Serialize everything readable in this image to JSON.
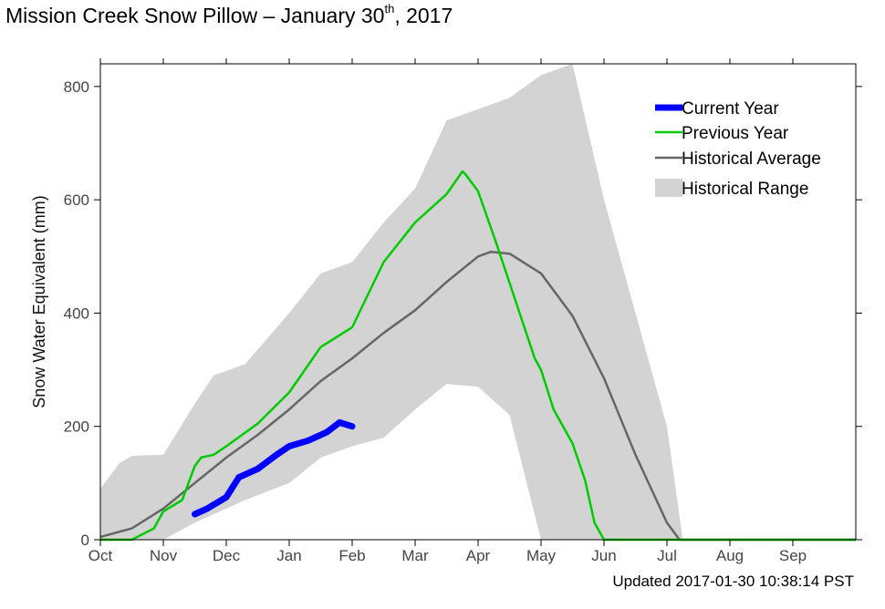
{
  "title": {
    "prefix": "Mission Creek Snow Pillow – January 30",
    "sup": "th",
    "suffix": ", 2017"
  },
  "updated": "Updated 2017-01-30 10:38:14 PST",
  "chart_data": {
    "type": "line",
    "title": "Mission Creek Snow Pillow – January 30th, 2017",
    "xlabel": "",
    "ylabel": "Snow Water Equivalent (mm)",
    "xlim": [
      "Oct",
      "Oct"
    ],
    "x_tick_labels": [
      "Oct",
      "Nov",
      "Dec",
      "Jan",
      "Feb",
      "Mar",
      "Apr",
      "May",
      "Jun",
      "Jul",
      "Aug",
      "Sep"
    ],
    "ylim": [
      0,
      840
    ],
    "y_ticks": [
      0,
      200,
      400,
      600,
      800
    ],
    "grid": false,
    "legend_position": "top-right",
    "colors": {
      "current_year": "#0000ff",
      "previous_year": "#00cc00",
      "historical_average": "#666666",
      "historical_range": "#d3d3d3"
    },
    "series": [
      {
        "name": "Historical Range",
        "kind": "band",
        "points": [
          {
            "x": 0.0,
            "lo": 0,
            "hi": 90
          },
          {
            "x": 0.3,
            "lo": 0,
            "hi": 135
          },
          {
            "x": 0.5,
            "lo": 0,
            "hi": 148
          },
          {
            "x": 1.0,
            "lo": 0,
            "hi": 150
          },
          {
            "x": 1.5,
            "lo": 30,
            "hi": 240
          },
          {
            "x": 1.8,
            "lo": 45,
            "hi": 290
          },
          {
            "x": 2.3,
            "lo": 70,
            "hi": 310
          },
          {
            "x": 3.0,
            "lo": 100,
            "hi": 400
          },
          {
            "x": 3.5,
            "lo": 145,
            "hi": 470
          },
          {
            "x": 4.0,
            "lo": 165,
            "hi": 490
          },
          {
            "x": 4.5,
            "lo": 180,
            "hi": 560
          },
          {
            "x": 5.0,
            "lo": 230,
            "hi": 620
          },
          {
            "x": 5.5,
            "lo": 275,
            "hi": 740
          },
          {
            "x": 6.0,
            "lo": 270,
            "hi": 760
          },
          {
            "x": 6.5,
            "lo": 220,
            "hi": 780
          },
          {
            "x": 7.0,
            "lo": 0,
            "hi": 820
          },
          {
            "x": 7.5,
            "lo": 0,
            "hi": 840
          },
          {
            "x": 8.0,
            "lo": 0,
            "hi": 600
          },
          {
            "x": 8.5,
            "lo": 0,
            "hi": 400
          },
          {
            "x": 9.0,
            "lo": 0,
            "hi": 200
          },
          {
            "x": 9.15,
            "lo": 0,
            "hi": 80
          },
          {
            "x": 9.25,
            "lo": 0,
            "hi": 0
          },
          {
            "x": 12.0,
            "lo": 0,
            "hi": 0
          }
        ]
      },
      {
        "name": "Historical Average",
        "x": [
          0.0,
          0.5,
          1.0,
          1.5,
          2.0,
          2.5,
          3.0,
          3.5,
          4.0,
          4.5,
          5.0,
          5.5,
          6.0,
          6.2,
          6.5,
          7.0,
          7.5,
          8.0,
          8.5,
          9.0,
          9.2,
          12.0
        ],
        "y": [
          5,
          20,
          55,
          100,
          145,
          185,
          230,
          280,
          320,
          365,
          405,
          455,
          500,
          508,
          505,
          470,
          395,
          285,
          150,
          30,
          0,
          0
        ]
      },
      {
        "name": "Previous Year",
        "x": [
          0.0,
          0.5,
          0.85,
          1.0,
          1.3,
          1.5,
          1.6,
          1.8,
          2.0,
          2.5,
          3.0,
          3.5,
          4.0,
          4.5,
          5.0,
          5.5,
          5.75,
          5.8,
          6.0,
          6.3,
          6.6,
          6.9,
          7.0,
          7.2,
          7.5,
          7.7,
          7.85,
          8.0,
          12.0
        ],
        "y": [
          0,
          0,
          20,
          50,
          70,
          130,
          145,
          150,
          165,
          205,
          260,
          340,
          375,
          490,
          560,
          610,
          650,
          645,
          615,
          520,
          420,
          320,
          300,
          230,
          170,
          105,
          30,
          0,
          0
        ]
      },
      {
        "name": "Current Year",
        "x": [
          1.5,
          1.7,
          2.0,
          2.2,
          2.5,
          2.8,
          3.0,
          3.3,
          3.6,
          3.8,
          4.0
        ],
        "y": [
          45,
          55,
          75,
          110,
          125,
          150,
          165,
          175,
          190,
          207,
          200
        ]
      }
    ]
  }
}
